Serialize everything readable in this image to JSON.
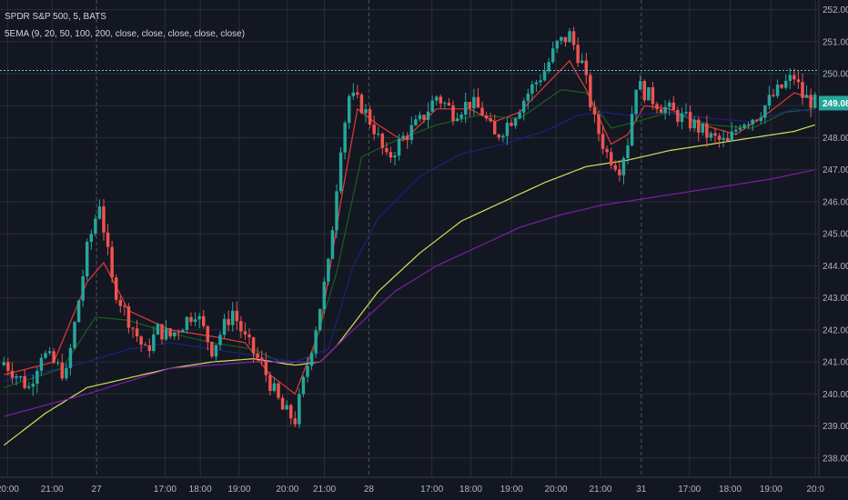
{
  "chart_data": {
    "type": "candlestick",
    "title": "SPDR S&P 500, 5, BATS",
    "indicator": "5EMA (9, 20, 50, 100, 200, close, close, close, close, close)",
    "ylim": [
      237.4,
      252.3
    ],
    "y_ticks": [
      "252.00",
      "251.00",
      "250.00",
      "249.00",
      "248.00",
      "247.00",
      "246.00",
      "245.00",
      "244.00",
      "243.00",
      "242.00",
      "241.00",
      "240.00",
      "239.00",
      "238.00"
    ],
    "x_ticks": [
      "20:00",
      "21:00",
      "27",
      "17:00",
      "18:00",
      "19:00",
      "20:00",
      "21:00",
      "28",
      "17:00",
      "18:00",
      "19:00",
      "20:00",
      "21:00",
      "31",
      "17:00",
      "18:00",
      "19:00",
      "20:0"
    ],
    "session_breaks": [
      "27",
      "28",
      "31"
    ],
    "last_price": "249.08",
    "horizontal_line": 250.1,
    "colors": {
      "background": "#131722",
      "grid": "#2a2e39",
      "up": "#26a69a",
      "down": "#ef5350",
      "last_price_bg": "#26a69a",
      "ema9": "#e53935",
      "ema20": "#1b5e20",
      "ema50": "#1a237e",
      "ema100": "#d4e157",
      "ema200": "#7b1fa2",
      "hline": "#4dd0e1"
    },
    "close_path": [
      [
        0,
        241.0
      ],
      [
        6,
        240.2
      ],
      [
        9,
        241.3
      ],
      [
        15,
        240.6
      ],
      [
        20,
        244.5
      ],
      [
        23,
        246.0
      ],
      [
        26,
        243.5
      ],
      [
        29,
        242.6
      ],
      [
        34,
        241.3
      ],
      [
        37,
        242.0
      ],
      [
        40,
        241.8
      ],
      [
        46,
        242.6
      ],
      [
        50,
        241.4
      ],
      [
        55,
        242.6
      ],
      [
        58,
        241.7
      ],
      [
        62,
        240.9
      ],
      [
        67,
        239.5
      ],
      [
        70,
        239.2
      ],
      [
        74,
        241.5
      ],
      [
        78,
        244.0
      ],
      [
        81,
        247.8
      ],
      [
        83,
        249.3
      ],
      [
        86,
        249.0
      ],
      [
        89,
        248.3
      ],
      [
        92,
        247.3
      ],
      [
        96,
        248.0
      ],
      [
        100,
        248.5
      ],
      [
        104,
        249.3
      ],
      [
        108,
        248.8
      ],
      [
        112,
        249.1
      ],
      [
        115,
        248.8
      ],
      [
        118,
        248.0
      ],
      [
        122,
        248.6
      ],
      [
        126,
        249.4
      ],
      [
        130,
        250.1
      ],
      [
        133,
        250.9
      ],
      [
        136,
        251.2
      ],
      [
        139,
        250.3
      ],
      [
        142,
        248.5
      ],
      [
        145,
        247.5
      ],
      [
        148,
        247.1
      ],
      [
        150,
        247.9
      ],
      [
        152,
        249.7
      ],
      [
        155,
        249.3
      ],
      [
        158,
        249.0
      ],
      [
        162,
        248.7
      ],
      [
        166,
        248.4
      ],
      [
        170,
        248.0
      ],
      [
        174,
        247.8
      ],
      [
        177,
        248.5
      ],
      [
        181,
        248.7
      ],
      [
        185,
        249.3
      ],
      [
        188,
        249.7
      ],
      [
        190,
        249.9
      ],
      [
        192,
        249.3
      ],
      [
        195,
        249.08
      ]
    ],
    "ema_paths": {
      "ema9": [
        [
          0,
          240.6
        ],
        [
          12,
          241.0
        ],
        [
          20,
          243.5
        ],
        [
          24,
          244.1
        ],
        [
          30,
          242.6
        ],
        [
          40,
          242.0
        ],
        [
          50,
          241.8
        ],
        [
          58,
          241.6
        ],
        [
          64,
          240.6
        ],
        [
          70,
          240.0
        ],
        [
          76,
          242.0
        ],
        [
          81,
          246.0
        ],
        [
          85,
          248.9
        ],
        [
          90,
          248.4
        ],
        [
          96,
          247.9
        ],
        [
          104,
          248.9
        ],
        [
          112,
          248.9
        ],
        [
          118,
          248.5
        ],
        [
          124,
          248.8
        ],
        [
          130,
          249.6
        ],
        [
          136,
          250.4
        ],
        [
          140,
          249.5
        ],
        [
          146,
          247.8
        ],
        [
          150,
          248.1
        ],
        [
          154,
          249.0
        ],
        [
          160,
          248.9
        ],
        [
          168,
          248.4
        ],
        [
          176,
          248.1
        ],
        [
          184,
          248.8
        ],
        [
          190,
          249.4
        ],
        [
          195,
          249.2
        ]
      ],
      "ema20": [
        [
          0,
          240.2
        ],
        [
          14,
          240.8
        ],
        [
          22,
          242.4
        ],
        [
          30,
          242.3
        ],
        [
          40,
          241.9
        ],
        [
          50,
          241.6
        ],
        [
          60,
          241.4
        ],
        [
          68,
          240.9
        ],
        [
          74,
          241.2
        ],
        [
          80,
          243.8
        ],
        [
          86,
          247.4
        ],
        [
          94,
          247.9
        ],
        [
          104,
          248.4
        ],
        [
          114,
          248.7
        ],
        [
          124,
          248.6
        ],
        [
          134,
          249.5
        ],
        [
          140,
          249.4
        ],
        [
          146,
          248.3
        ],
        [
          152,
          248.5
        ],
        [
          160,
          248.8
        ],
        [
          170,
          248.4
        ],
        [
          180,
          248.3
        ],
        [
          188,
          248.8
        ],
        [
          195,
          248.9
        ]
      ],
      "ema50": [
        [
          0,
          240.4
        ],
        [
          20,
          241.0
        ],
        [
          30,
          241.4
        ],
        [
          40,
          241.6
        ],
        [
          50,
          241.4
        ],
        [
          60,
          241.2
        ],
        [
          70,
          241.0
        ],
        [
          78,
          241.4
        ],
        [
          84,
          244.0
        ],
        [
          90,
          245.5
        ],
        [
          100,
          246.8
        ],
        [
          110,
          247.5
        ],
        [
          120,
          247.8
        ],
        [
          130,
          248.2
        ],
        [
          138,
          248.7
        ],
        [
          144,
          248.8
        ],
        [
          150,
          248.7
        ],
        [
          160,
          248.8
        ],
        [
          170,
          248.6
        ],
        [
          180,
          248.5
        ],
        [
          190,
          248.9
        ],
        [
          195,
          248.8
        ]
      ],
      "ema100": [
        [
          0,
          238.4
        ],
        [
          10,
          239.4
        ],
        [
          20,
          240.2
        ],
        [
          30,
          240.5
        ],
        [
          40,
          240.8
        ],
        [
          50,
          241.0
        ],
        [
          60,
          241.1
        ],
        [
          70,
          240.9
        ],
        [
          76,
          241.0
        ],
        [
          80,
          241.5
        ],
        [
          90,
          243.2
        ],
        [
          100,
          244.4
        ],
        [
          110,
          245.4
        ],
        [
          120,
          246.0
        ],
        [
          130,
          246.6
        ],
        [
          140,
          247.1
        ],
        [
          150,
          247.3
        ],
        [
          160,
          247.6
        ],
        [
          170,
          247.8
        ],
        [
          180,
          248.0
        ],
        [
          190,
          248.2
        ],
        [
          195,
          248.4
        ]
      ],
      "ema200": [
        [
          0,
          239.3
        ],
        [
          20,
          240.0
        ],
        [
          40,
          240.8
        ],
        [
          60,
          241.0
        ],
        [
          76,
          241.0
        ],
        [
          84,
          242.0
        ],
        [
          94,
          243.2
        ],
        [
          104,
          244.0
        ],
        [
          114,
          244.6
        ],
        [
          124,
          245.2
        ],
        [
          134,
          245.6
        ],
        [
          144,
          245.9
        ],
        [
          154,
          246.1
        ],
        [
          164,
          246.3
        ],
        [
          174,
          246.5
        ],
        [
          184,
          246.7
        ],
        [
          195,
          247.0
        ]
      ]
    }
  }
}
